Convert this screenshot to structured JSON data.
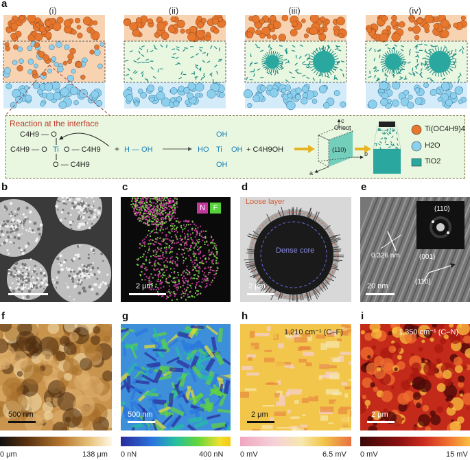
{
  "panel_a": {
    "label": "a",
    "stages": [
      "(i)",
      "(ii)",
      "(iii)",
      "(iv)"
    ],
    "box_title": "Reaction at the interface",
    "reactant": {
      "top_group": "C4H9 — O",
      "left_group": "C4H9 — O",
      "center": "Ti",
      "right_group": "O — C4H9",
      "bottom_group": "O — C4H9"
    },
    "plus1": "+",
    "water": "H — OH",
    "product": {
      "top": "OH",
      "left": "HO",
      "center": "Ti",
      "right": "OH",
      "bottom": "OH"
    },
    "plus2": "+ C4H9OH",
    "crystal": {
      "orient": "Orient",
      "facet": "(110)",
      "axis_a": "a",
      "axis_b": "b",
      "axis_c": "c"
    },
    "legend": [
      {
        "label": "Ti(OC4H9)4",
        "color": "#e8772e"
      },
      {
        "label": "H2O",
        "color": "#8dd0ee"
      },
      {
        "label": "TiO2",
        "color": "#2aa8a0"
      }
    ]
  },
  "panel_b": {
    "label": "b",
    "scale": "2 μm"
  },
  "panel_c": {
    "label": "c",
    "scale": "2 μm",
    "legend_n": "N",
    "legend_f": "F"
  },
  "panel_d": {
    "label": "d",
    "scale": "2 μm",
    "outer": "Loose layer",
    "inner": "Dense core"
  },
  "panel_e": {
    "label": "e",
    "scale": "20 nm",
    "fft": "(110)",
    "d_spacing": "0.326 nm",
    "dir1": "(001)",
    "dir2": "(110)"
  },
  "panel_f": {
    "label": "f",
    "scale": "500 nm",
    "cbar_min": "0 μm",
    "cbar_max": "138 μm"
  },
  "panel_g": {
    "label": "g",
    "scale": "500 nm",
    "cbar_min": "0 nN",
    "cbar_max": "400 nN"
  },
  "panel_h": {
    "label": "h",
    "scale": "2 μm",
    "band": "1,210 cm⁻¹ (C–F)",
    "cbar_min": "0 mV",
    "cbar_max": "6.5 mV"
  },
  "panel_i": {
    "label": "i",
    "scale": "2 μm",
    "band": "1,350 cm⁻¹ (C–N)",
    "cbar_min": "0 mV",
    "cbar_max": "15 mV"
  },
  "colors": {
    "orange": "#e8772e",
    "blue": "#8dd0ee",
    "teal": "#2aa8a0",
    "box_bg": "#e9f7e0",
    "box_border": "#7a6a3a"
  }
}
